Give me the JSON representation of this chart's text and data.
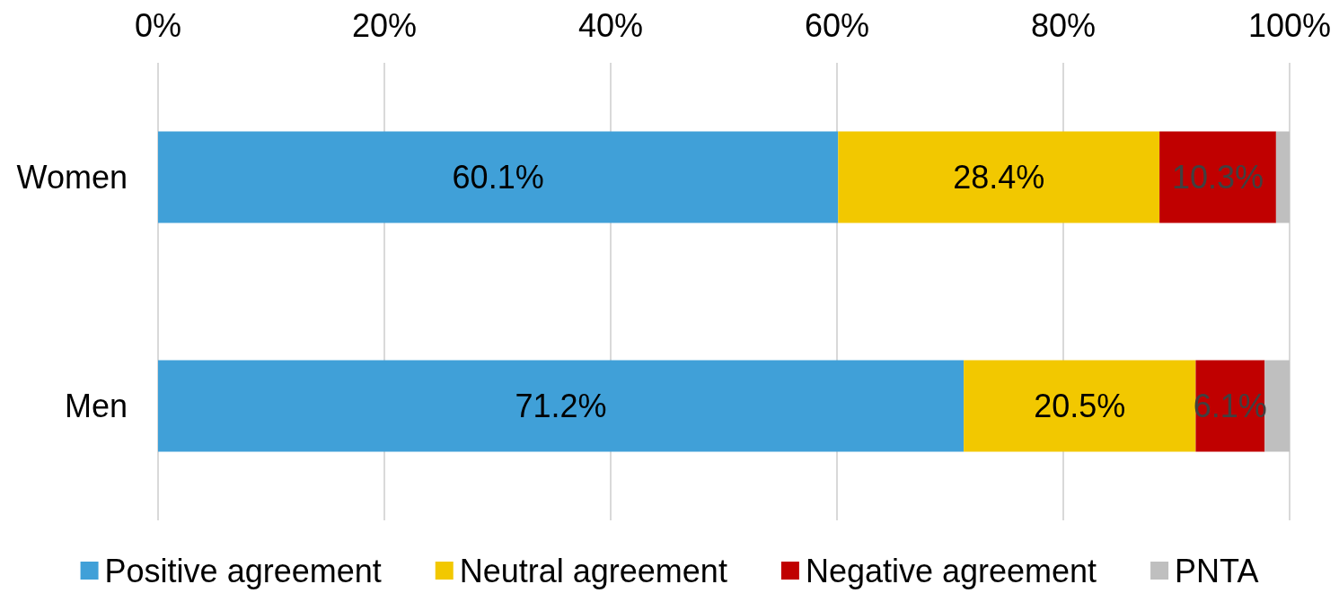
{
  "chart_data": {
    "type": "bar",
    "orientation": "horizontal",
    "stacked": true,
    "categories": [
      "Women",
      "Men"
    ],
    "series": [
      {
        "name": "Positive agreement",
        "color": "#40a0d8",
        "values": [
          60.1,
          71.2
        ],
        "value_labels": [
          "60.1%",
          "71.2%"
        ]
      },
      {
        "name": "Neutral agreement",
        "color": "#f2c800",
        "values": [
          28.4,
          20.5
        ],
        "value_labels": [
          "28.4%",
          "20.5%"
        ]
      },
      {
        "name": "Negative agreement",
        "color": "#c00000",
        "values": [
          10.3,
          6.1
        ],
        "value_labels": [
          "10.3%",
          "6.1%"
        ]
      },
      {
        "name": "PNTA",
        "color": "#bfbfbf",
        "values": [
          1.2,
          2.2
        ]
      }
    ],
    "xlim": [
      0,
      100
    ],
    "xticks": [
      {
        "value": 0,
        "label": "0%"
      },
      {
        "value": 20,
        "label": "20%"
      },
      {
        "value": 40,
        "label": "40%"
      },
      {
        "value": 60,
        "label": "60%"
      },
      {
        "value": 80,
        "label": "80%"
      },
      {
        "value": 100,
        "label": "100%"
      }
    ],
    "grid": "x",
    "legend": "bottom"
  }
}
